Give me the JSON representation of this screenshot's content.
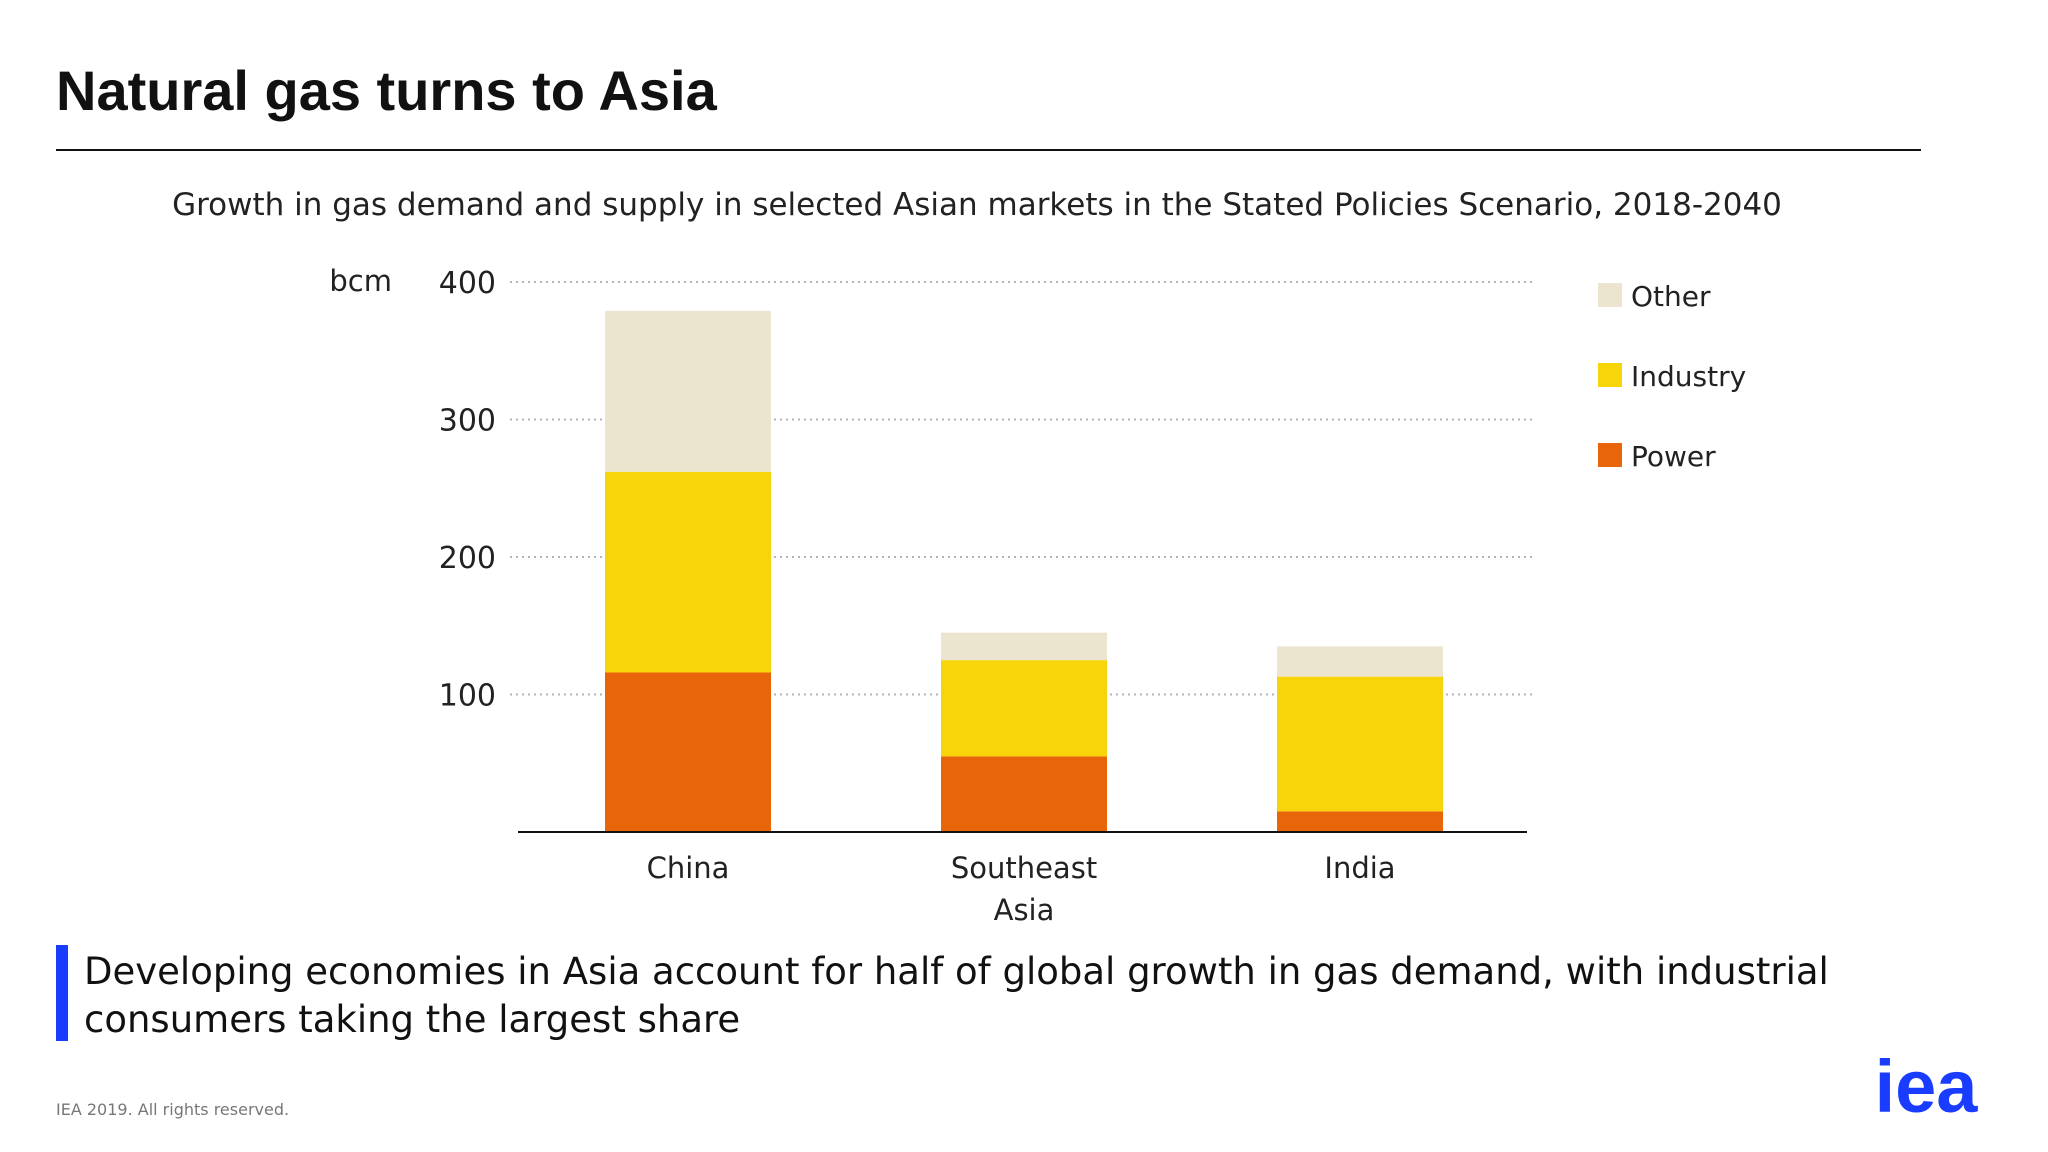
{
  "slide": {
    "title": "Natural gas turns to Asia",
    "takeaway": "Developing economies in Asia account for half of global growth in gas demand, with industrial consumers taking the largest share",
    "footer": "IEA 2019. All rights reserved.",
    "logo_text": "iea",
    "accent_color": "#1a3cff"
  },
  "chart_data": {
    "type": "bar",
    "stacked": true,
    "title": "Growth in gas demand and supply in selected Asian markets in the Stated Policies Scenario, 2018-2040",
    "ylabel": "bcm",
    "xlabel": "",
    "ylim": [
      0,
      400
    ],
    "yticks": [
      100,
      200,
      300,
      400
    ],
    "grid": true,
    "legend_position": "right",
    "categories": [
      "China",
      "Southeast Asia",
      "India"
    ],
    "category_lines": [
      [
        "China"
      ],
      [
        "Southeast",
        "Asia"
      ],
      [
        "India"
      ]
    ],
    "series": [
      {
        "name": "Power",
        "color": "#e8650a",
        "values": [
          116,
          55,
          15
        ]
      },
      {
        "name": "Industry",
        "color": "#f8d40a",
        "values": [
          146,
          70,
          98
        ]
      },
      {
        "name": "Other",
        "color": "#ebe5cf",
        "values": [
          117,
          20,
          22
        ]
      }
    ],
    "legend_order": [
      "Other",
      "Industry",
      "Power"
    ]
  }
}
